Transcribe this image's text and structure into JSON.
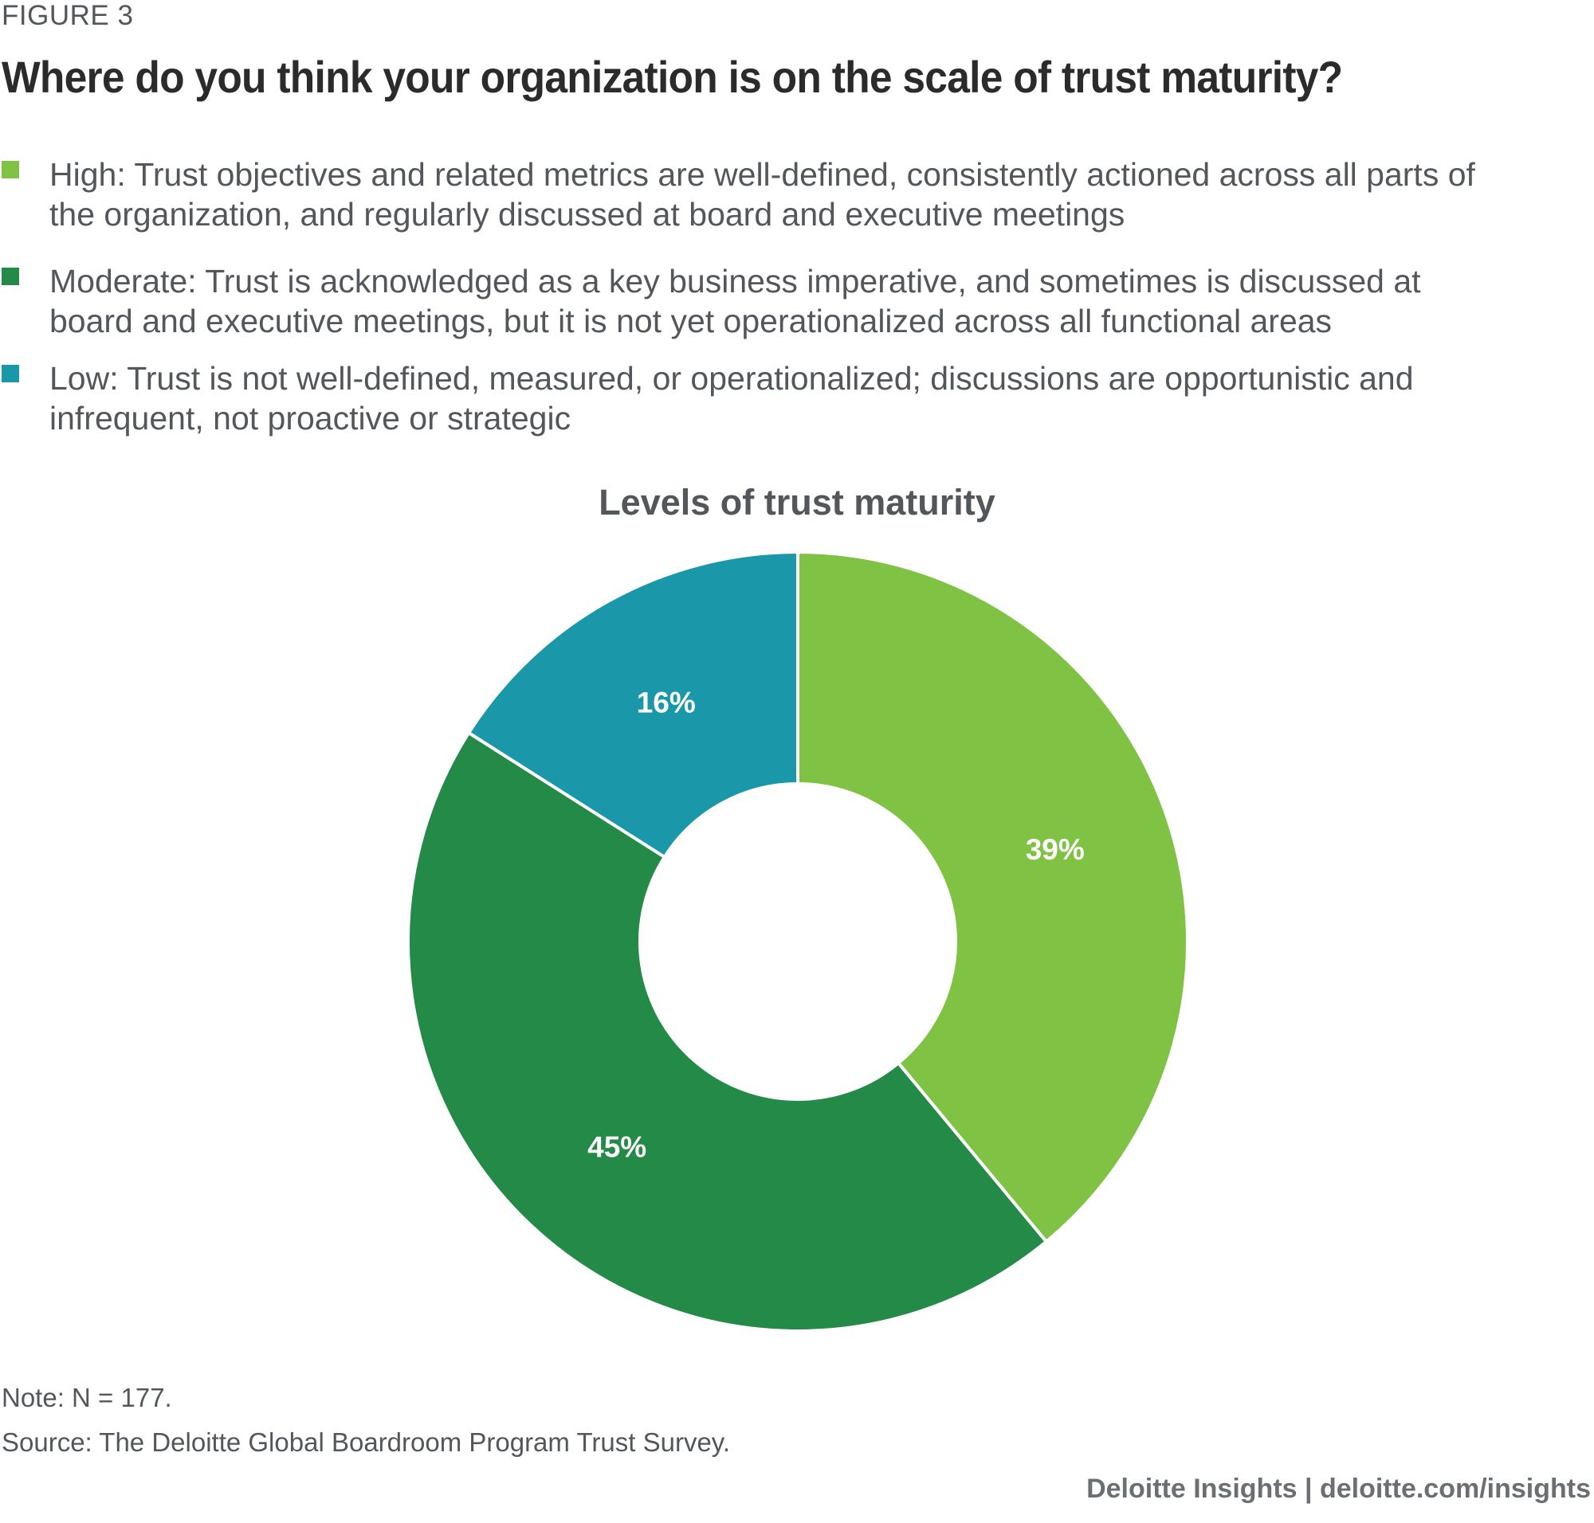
{
  "figure_label": "FIGURE 3",
  "headline": "Where do you think your organization is on the scale of trust maturity?",
  "legend": [
    {
      "label": "High: Trust objectives and related metrics are well-defined, consistently actioned across all parts of the organization, and regularly discussed at board and executive meetings",
      "color": "#80c244"
    },
    {
      "label": "Moderate: Trust is acknowledged as a key business imperative, and sometimes is discussed at board and executive meetings, but it is not yet operationalized across all functional areas",
      "color": "#248a47"
    },
    {
      "label": "Low: Trust is not well-defined, measured, or operationalized; discussions are opportunistic and infrequent, not proactive or strategic",
      "color": "#1b97aa"
    }
  ],
  "chart_data": {
    "type": "pie",
    "title": "Levels of trust maturity",
    "categories": [
      "High",
      "Moderate",
      "Low"
    ],
    "values": [
      39,
      45,
      16
    ],
    "labels": [
      "39%",
      "45%",
      "16%"
    ],
    "colors": [
      "#80c244",
      "#248a47",
      "#1b97aa"
    ],
    "donut": true
  },
  "note": "Note: N = 177.",
  "source": "Source: The Deloitte Global Boardroom Program Trust Survey.",
  "credit": "Deloitte Insights | deloitte.com/insights"
}
